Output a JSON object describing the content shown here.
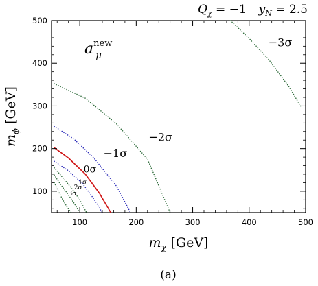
{
  "chart_data": {
    "type": "line",
    "header": "Qχ = −1    yN = 2.5",
    "header_parts": {
      "q_symbol": "Q",
      "q_sub": "χ",
      "q_value": " = −1",
      "y_symbol": "y",
      "y_sub": "N",
      "y_value": " = 2.5"
    },
    "inset_label": {
      "base": "a",
      "sup": "new",
      "sub": "μ"
    },
    "xlabel": "mχ [GeV]",
    "xlabel_parts": {
      "symbol": "m",
      "sub": "χ",
      "unit": " [GeV]"
    },
    "ylabel": "mϕ [GeV]",
    "ylabel_parts": {
      "symbol": "m",
      "sub": "ϕ",
      "unit": " [GeV]"
    },
    "caption": "(a)",
    "xlim": [
      50,
      500
    ],
    "ylim": [
      50,
      500
    ],
    "xticks": [
      "100",
      "200",
      "300",
      "400",
      "500"
    ],
    "yticks": [
      "100",
      "200",
      "300",
      "400",
      "500"
    ],
    "grid": false,
    "series": [
      {
        "name": "−3σ",
        "color": "#2e6b3a",
        "style": "dotted",
        "x": [
          55,
          62,
          70,
          78,
          85
        ],
        "y": [
          120,
          100,
          80,
          62,
          50
        ]
      },
      {
        "name": "−2σ",
        "color": "#2e6b3a",
        "style": "dotted",
        "x": [
          55,
          65,
          78,
          90,
          100
        ],
        "y": [
          138,
          118,
          95,
          72,
          50
        ]
      },
      {
        "name": "−1σ",
        "color": "#2e6b3a",
        "style": "dotted",
        "x": [
          55,
          70,
          85,
          100,
          112
        ],
        "y": [
          155,
          132,
          108,
          80,
          50
        ]
      },
      {
        "name": "2σ",
        "color": "#2a2ab8",
        "style": "dotted",
        "x": [
          55,
          80,
          105,
          125,
          140
        ],
        "y": [
          170,
          148,
          118,
          82,
          50
        ]
      },
      {
        "name": "0σ",
        "color": "#d01818",
        "style": "solid",
        "x": [
          55,
          80,
          110,
          135,
          155
        ],
        "y": [
          202,
          178,
          140,
          95,
          50
        ]
      },
      {
        "name": "−1σ",
        "color": "#2a2ab8",
        "style": "dotted",
        "x": [
          55,
          90,
          125,
          165,
          190
        ],
        "y": [
          252,
          222,
          178,
          112,
          50
        ]
      },
      {
        "name": "−2σ",
        "color": "#2e6b3a",
        "style": "dotted",
        "x": [
          55,
          110,
          165,
          220,
          260
        ],
        "y": [
          352,
          318,
          258,
          175,
          50
        ]
      },
      {
        "name": "−3σ",
        "color": "#2e6b3a",
        "style": "dotted",
        "x": [
          367,
          400,
          435,
          470,
          492
        ],
        "y": [
          500,
          458,
          408,
          346,
          298
        ]
      }
    ],
    "annotations": [
      {
        "text": "−3σ",
        "x": 455,
        "y": 440,
        "size": "large"
      },
      {
        "text": "−2σ",
        "x": 243,
        "y": 218,
        "size": "large"
      },
      {
        "text": "−1σ",
        "x": 163,
        "y": 180,
        "size": "large"
      },
      {
        "text": "0σ",
        "x": 118,
        "y": 144,
        "size": "medium"
      },
      {
        "text": "1σ",
        "x": 105,
        "y": 117,
        "size": "tiny"
      },
      {
        "text": "2σ",
        "x": 97,
        "y": 105,
        "size": "tiny"
      },
      {
        "text": "3σ",
        "x": 87,
        "y": 90,
        "size": "tiny"
      }
    ]
  }
}
